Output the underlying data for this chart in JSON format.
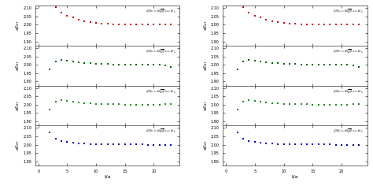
{
  "ncols": 2,
  "nrows": 4,
  "xlabel": "t/a",
  "ylim": [
    1.875,
    2.115
  ],
  "yticks": [
    1.9,
    1.95,
    2.0,
    2.05,
    2.1
  ],
  "xlim": [
    -0.5,
    24.5
  ],
  "xticks": [
    0,
    5,
    10,
    15,
    20
  ],
  "colors": [
    "#cc0000",
    "#006600",
    "#228822",
    "#0000bb"
  ],
  "data": [
    {
      "t": [
        3,
        4,
        5,
        6,
        7,
        8,
        9,
        10,
        11,
        12,
        13,
        14,
        15,
        16,
        17,
        18,
        19,
        20,
        21,
        22,
        23
      ],
      "y": [
        2.107,
        2.075,
        2.055,
        2.043,
        2.03,
        2.022,
        2.015,
        2.011,
        2.008,
        2.006,
        2.004,
        2.004,
        2.003,
        2.002,
        2.002,
        2.002,
        2.001,
        2.001,
        2.001,
        2.0,
        2.0
      ]
    },
    {
      "t": [
        2,
        3,
        4,
        5,
        6,
        7,
        8,
        9,
        10,
        11,
        12,
        13,
        14,
        15,
        16,
        17,
        18,
        19,
        20,
        21,
        22,
        23
      ],
      "y": [
        1.972,
        2.018,
        2.028,
        2.025,
        2.02,
        2.015,
        2.01,
        2.008,
        2.005,
        2.003,
        2.003,
        2.002,
        2.002,
        2.001,
        2.001,
        2.001,
        2.001,
        2.001,
        2.0,
        2.0,
        1.998,
        1.985
      ]
    },
    {
      "t": [
        2,
        3,
        4,
        5,
        6,
        7,
        8,
        9,
        10,
        11,
        12,
        13,
        14,
        15,
        16,
        17,
        18,
        19,
        20,
        21,
        22,
        23
      ],
      "y": [
        1.972,
        2.018,
        2.03,
        2.025,
        2.02,
        2.015,
        2.011,
        2.008,
        2.005,
        2.003,
        2.003,
        2.002,
        2.002,
        2.001,
        2.001,
        2.001,
        2.001,
        2.001,
        2.0,
        2.0,
        2.002,
        2.002
      ]
    },
    {
      "t": [
        2,
        3,
        4,
        5,
        6,
        7,
        8,
        9,
        10,
        11,
        12,
        13,
        14,
        15,
        16,
        17,
        18,
        19,
        20,
        21,
        22,
        23
      ],
      "y": [
        2.075,
        2.038,
        2.023,
        2.015,
        2.01,
        2.008,
        2.006,
        2.005,
        2.004,
        2.003,
        2.003,
        2.002,
        2.002,
        2.001,
        2.001,
        2.001,
        2.001,
        2.0,
        2.0,
        2.0,
        1.998,
        2.0
      ]
    }
  ],
  "labels_left": [
    "$\\langle O|(c,c,b)|\\overline{O}|(c,c,b)\\rangle_1$",
    "$\\langle O|(\\bar{c},c,b)|\\overline{O}|(c,c,b)\\rangle_1$",
    "$\\langle O|(c,c,b)|\\overline{O}|(\\bar{c},c,b)\\rangle_1$",
    "$\\langle O|(\\bar{c},\\bar{c},b)|\\overline{O}|(c,c,b)\\rangle_1$"
  ],
  "labels_right": [
    "$\\langle O|(c,c,b)|\\overline{O}|(c,c,b)\\rangle_1$",
    "$\\langle O|(\\bar{c},c,b)|\\overline{O}|(c,c,b)\\rangle_1$",
    "$\\langle O|(c,c,b)|\\overline{O}|(\\bar{c},c,b)\\rangle_1$",
    "$\\langle O|(\\bar{c},\\bar{c},b)|\\overline{O}|(c,c,b)\\rangle_1$"
  ]
}
